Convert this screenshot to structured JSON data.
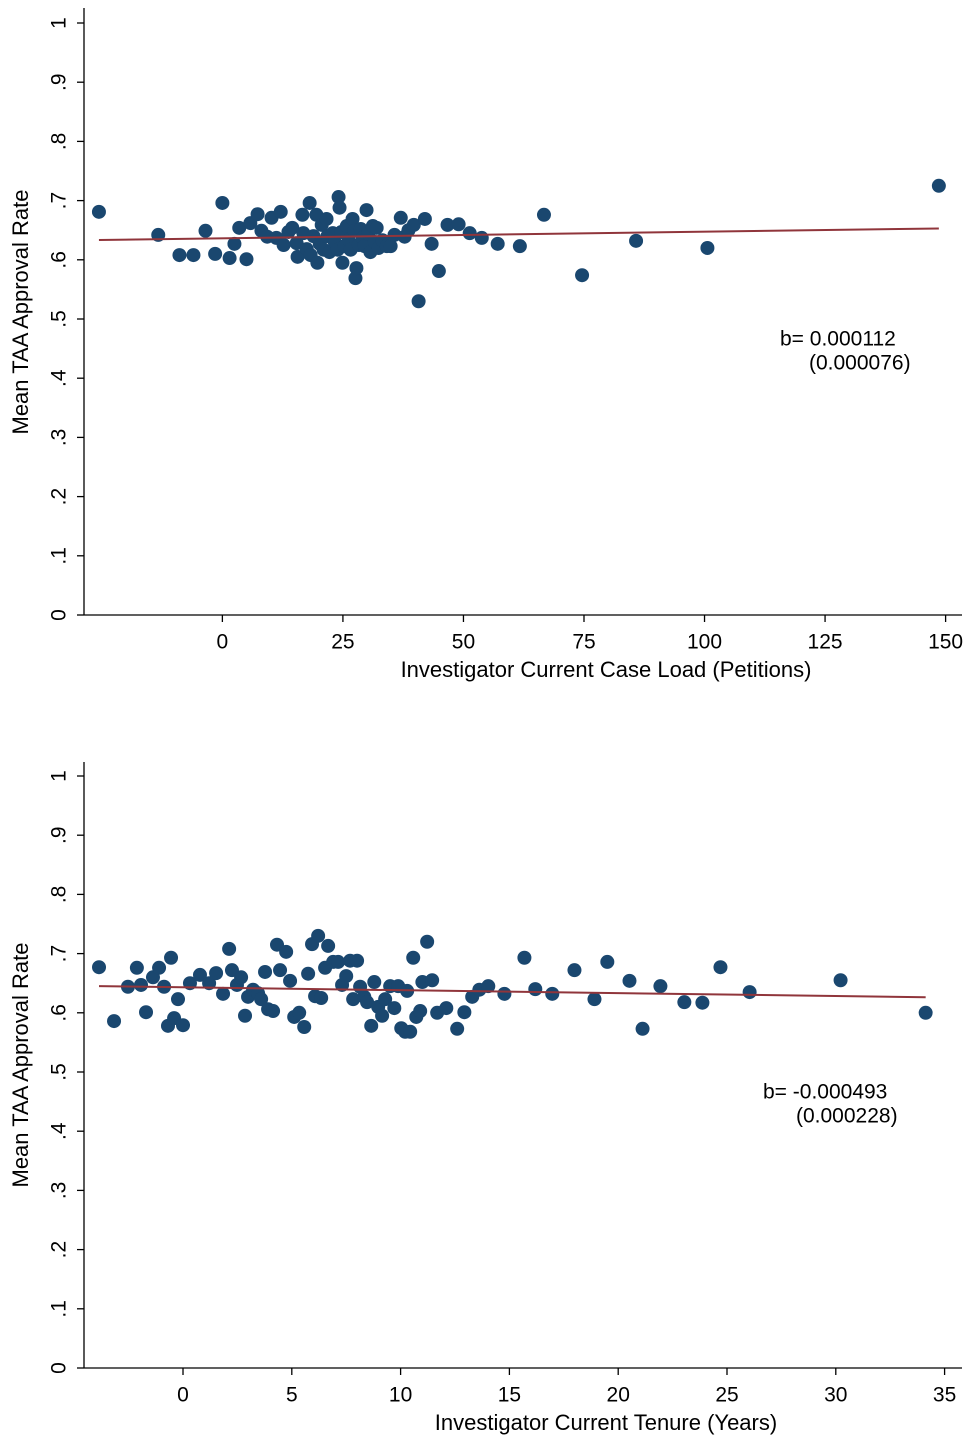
{
  "chart_data": [
    {
      "type": "scatter",
      "x_label": "Investigator Current Case Load (Petitions)",
      "y_label": "Mean TAA Approval Rate",
      "color": "#1a476f",
      "x": [
        -25.6,
        -13.3,
        -8.9,
        -6.0,
        -3.5,
        -1.5,
        0,
        1.5,
        2.5,
        3.5,
        5.0,
        5.8,
        7.3,
        8.1,
        9.3,
        10.2,
        11.2,
        12.1,
        12.7,
        13.7,
        14.5,
        15.4,
        15.6,
        16.6,
        16.8,
        17.5,
        18.1,
        18.3,
        18.9,
        19.5,
        19.7,
        20.2,
        20.6,
        21.0,
        21.6,
        21.8,
        22.2,
        22.9,
        23.3,
        23.9,
        24.1,
        24.3,
        24.7,
        24.9,
        25.3,
        25.8,
        26.2,
        26.6,
        27.0,
        27.4,
        27.6,
        27.8,
        28.3,
        28.7,
        29.1,
        29.5,
        29.9,
        30.3,
        30.7,
        31.2,
        31.6,
        32.0,
        32.4,
        33.2,
        34.1,
        34.9,
        35.7,
        37.0,
        37.8,
        38.6,
        39.7,
        40.7,
        42.0,
        43.4,
        44.9,
        46.7,
        49.0,
        51.3,
        53.8,
        57.1,
        61.7,
        66.7,
        74.6,
        85.8,
        100.6,
        148.6
      ],
      "values": [
        0.681,
        0.642,
        0.608,
        0.608,
        0.649,
        0.61,
        0.696,
        0.603,
        0.627,
        0.654,
        0.601,
        0.662,
        0.677,
        0.649,
        0.639,
        0.671,
        0.637,
        0.681,
        0.625,
        0.647,
        0.654,
        0.628,
        0.605,
        0.676,
        0.645,
        0.618,
        0.696,
        0.608,
        0.64,
        0.676,
        0.595,
        0.627,
        0.659,
        0.617,
        0.669,
        0.64,
        0.613,
        0.645,
        0.63,
        0.617,
        0.706,
        0.688,
        0.647,
        0.595,
        0.623,
        0.657,
        0.633,
        0.617,
        0.669,
        0.649,
        0.569,
        0.586,
        0.625,
        0.652,
        0.637,
        0.623,
        0.684,
        0.644,
        0.613,
        0.657,
        0.63,
        0.654,
        0.62,
        0.633,
        0.623,
        0.623,
        0.642,
        0.671,
        0.639,
        0.65,
        0.659,
        0.53,
        0.669,
        0.627,
        0.581,
        0.659,
        0.66,
        0.645,
        0.637,
        0.627,
        0.623,
        0.676,
        0.574,
        0.632,
        0.62,
        0.725
      ],
      "fit": {
        "x": [
          -25.6,
          148.6
        ],
        "values": [
          0.6334,
          0.6529
        ],
        "color": "#90353b"
      },
      "xlim": [
        -28.7,
        153.4
      ],
      "ylim": [
        0,
        1
      ],
      "xticks": [
        0,
        25,
        50,
        75,
        100,
        125,
        150
      ],
      "yticks": [
        0,
        {
          "value": 0.1,
          "label": ".1"
        },
        {
          "value": 0.2,
          "label": ".2"
        },
        {
          "value": 0.3,
          "label": ".3"
        },
        {
          "value": 0.4,
          "label": ".4"
        },
        {
          "value": 0.5,
          "label": ".5"
        },
        {
          "value": 0.6,
          "label": ".6"
        },
        {
          "value": 0.7,
          "label": ".7"
        },
        {
          "value": 0.8,
          "label": ".8"
        },
        {
          "value": 0.9,
          "label": ".9"
        },
        1
      ],
      "annotations": [
        "b= 0.000112",
        "(0.000076)"
      ]
    },
    {
      "type": "scatter",
      "x_label": "Investigator Current Tenure (Years)",
      "y_label": "Mean TAA Approval Rate",
      "color": "#1a476f",
      "x": [
        -3.86,
        -3.17,
        -2.53,
        -2.12,
        -1.93,
        -1.7,
        -1.38,
        -1.1,
        -0.87,
        -0.69,
        -0.55,
        -0.41,
        -0.23,
        0,
        0.32,
        0.78,
        1.2,
        1.52,
        1.84,
        2.12,
        2.25,
        2.48,
        2.67,
        2.85,
        2.99,
        3.22,
        3.45,
        3.59,
        3.77,
        3.91,
        4.14,
        4.32,
        4.46,
        4.74,
        4.92,
        5.11,
        5.34,
        5.57,
        5.75,
        5.93,
        6.07,
        6.21,
        6.35,
        6.53,
        6.67,
        6.9,
        7.13,
        7.31,
        7.5,
        7.68,
        7.82,
        8.0,
        8.14,
        8.33,
        8.46,
        8.65,
        8.79,
        8.97,
        9.15,
        9.29,
        9.52,
        9.71,
        9.89,
        10.03,
        10.21,
        10.3,
        10.44,
        10.58,
        10.72,
        10.9,
        11.0,
        11.22,
        11.45,
        11.68,
        12.1,
        12.6,
        12.93,
        13.29,
        13.62,
        14.03,
        14.77,
        15.69,
        16.19,
        16.97,
        17.99,
        18.91,
        19.5,
        20.52,
        21.12,
        21.94,
        23.04,
        23.87,
        24.7,
        26.04,
        30.22,
        34.13
      ],
      "values": [
        0.677,
        0.586,
        0.644,
        0.676,
        0.647,
        0.601,
        0.66,
        0.676,
        0.644,
        0.578,
        0.693,
        0.591,
        0.623,
        0.579,
        0.65,
        0.664,
        0.65,
        0.667,
        0.632,
        0.708,
        0.672,
        0.647,
        0.66,
        0.595,
        0.627,
        0.639,
        0.633,
        0.623,
        0.669,
        0.606,
        0.603,
        0.715,
        0.672,
        0.703,
        0.654,
        0.593,
        0.6,
        0.576,
        0.666,
        0.716,
        0.628,
        0.73,
        0.625,
        0.676,
        0.713,
        0.686,
        0.686,
        0.647,
        0.662,
        0.688,
        0.623,
        0.688,
        0.644,
        0.627,
        0.618,
        0.578,
        0.652,
        0.61,
        0.595,
        0.623,
        0.645,
        0.608,
        0.645,
        0.574,
        0.568,
        0.637,
        0.568,
        0.693,
        0.593,
        0.603,
        0.652,
        0.72,
        0.655,
        0.6,
        0.608,
        0.573,
        0.601,
        0.627,
        0.639,
        0.645,
        0.632,
        0.693,
        0.64,
        0.632,
        0.672,
        0.623,
        0.686,
        0.654,
        0.573,
        0.645,
        0.618,
        0.617,
        0.677,
        0.635,
        0.655,
        0.6
      ],
      "fit": {
        "x": [
          -3.86,
          34.13
        ],
        "values": [
          0.645,
          0.6263
        ],
        "color": "#90353b"
      },
      "xlim": [
        -4.55,
        35.8
      ],
      "ylim": [
        0,
        1
      ],
      "xticks": [
        0,
        5,
        10,
        15,
        20,
        25,
        30,
        35
      ],
      "yticks": [
        0,
        {
          "value": 0.1,
          "label": ".1"
        },
        {
          "value": 0.2,
          "label": ".2"
        },
        {
          "value": 0.3,
          "label": ".3"
        },
        {
          "value": 0.4,
          "label": ".4"
        },
        {
          "value": 0.5,
          "label": ".5"
        },
        {
          "value": 0.6,
          "label": ".6"
        },
        {
          "value": 0.7,
          "label": ".7"
        },
        {
          "value": 0.8,
          "label": ".8"
        },
        {
          "value": 0.9,
          "label": ".9"
        },
        1
      ],
      "annotations": [
        "b= -0.000493",
        "(0.000228)"
      ]
    }
  ]
}
